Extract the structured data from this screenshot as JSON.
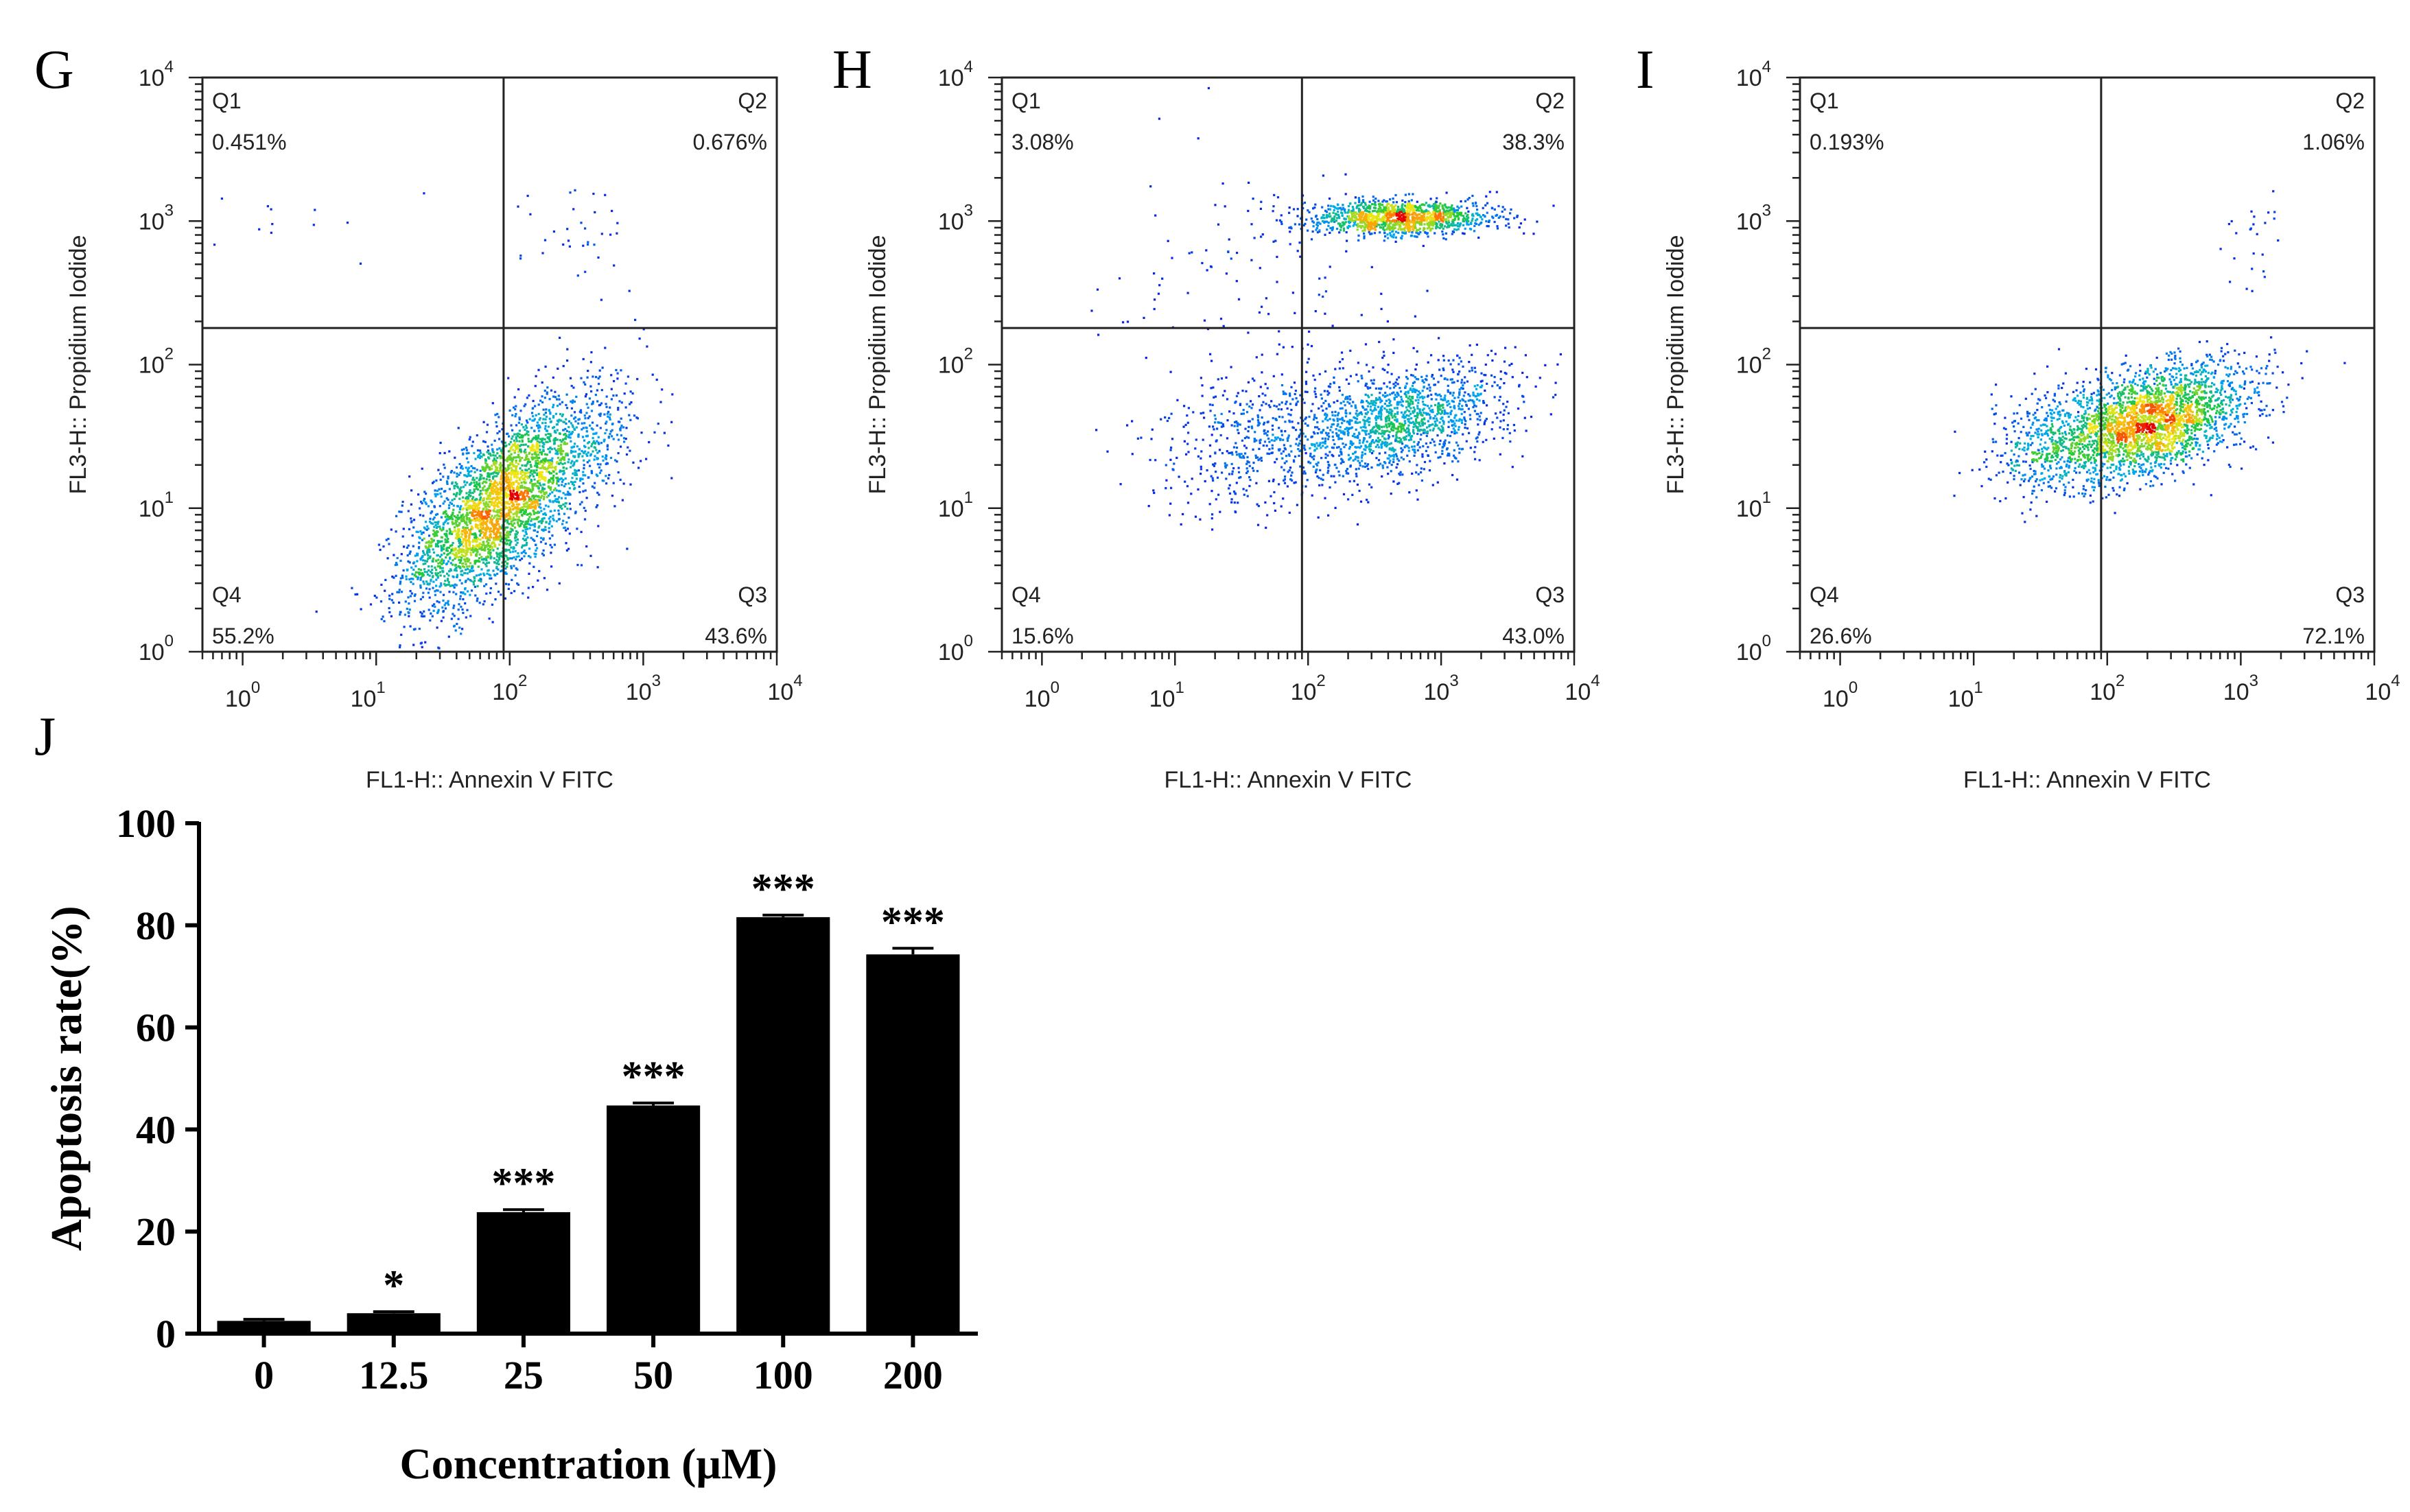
{
  "chart_data": [
    {
      "panel": "G",
      "type": "scatter",
      "xlabel": "FL1-H:: Annexin V FITC",
      "ylabel": "FL3-H:: Propidium Iodide",
      "x_scale": "log",
      "y_scale": "log",
      "xlim": [
        0.5,
        10000
      ],
      "ylim": [
        1,
        10000
      ],
      "x_ticks": [
        "10",
        "10",
        "10",
        "10",
        "10"
      ],
      "x_tick_exponents": [
        "0",
        "1",
        "2",
        "3",
        "4"
      ],
      "y_ticks": [
        "10",
        "10",
        "10",
        "10",
        "10"
      ],
      "y_tick_exponents": [
        "0",
        "1",
        "2",
        "3",
        "4"
      ],
      "gate": {
        "x": 90,
        "y": 180
      },
      "quadrants": [
        {
          "name": "Q1",
          "value": "0.451%"
        },
        {
          "name": "Q2",
          "value": "0.676%"
        },
        {
          "name": "Q3",
          "value": "43.6%"
        },
        {
          "name": "Q4",
          "value": "55.2%"
        }
      ],
      "populations": [
        {
          "cx": 70,
          "cy": 9,
          "sx": 0.32,
          "sy": 0.33,
          "rho": 0.6,
          "n": 2600
        },
        {
          "cx": 200,
          "cy": 20,
          "sx": 0.35,
          "sy": 0.3,
          "rho": 0.55,
          "n": 900
        },
        {
          "cx": 400,
          "cy": 800,
          "sx": 0.25,
          "sy": 0.2,
          "rho": 0.0,
          "n": 35
        },
        {
          "cx": 2,
          "cy": 900,
          "sx": 0.5,
          "sy": 0.15,
          "rho": 0.0,
          "n": 15
        }
      ]
    },
    {
      "panel": "H",
      "type": "scatter",
      "xlabel": "FL1-H:: Annexin V FITC",
      "ylabel": "FL3-H:: Propidium Iodide",
      "x_scale": "log",
      "y_scale": "log",
      "xlim": [
        0.5,
        10000
      ],
      "ylim": [
        1,
        10000
      ],
      "x_ticks": [
        "10",
        "10",
        "10",
        "10",
        "10"
      ],
      "x_tick_exponents": [
        "0",
        "1",
        "2",
        "3",
        "4"
      ],
      "y_ticks": [
        "10",
        "10",
        "10",
        "10",
        "10"
      ],
      "y_tick_exponents": [
        "0",
        "1",
        "2",
        "3",
        "4"
      ],
      "gate": {
        "x": 90,
        "y": 180
      },
      "quadrants": [
        {
          "name": "Q1",
          "value": "3.08%"
        },
        {
          "name": "Q2",
          "value": "38.3%"
        },
        {
          "name": "Q3",
          "value": "43.0%"
        },
        {
          "name": "Q4",
          "value": "15.6%"
        }
      ],
      "populations": [
        {
          "cx": 500,
          "cy": 1050,
          "sx": 0.35,
          "sy": 0.06,
          "rho": 0.0,
          "n": 1300
        },
        {
          "cx": 500,
          "cy": 40,
          "sx": 0.4,
          "sy": 0.2,
          "rho": 0.4,
          "n": 1400
        },
        {
          "cx": 40,
          "cy": 30,
          "sx": 0.4,
          "sy": 0.25,
          "rho": 0.3,
          "n": 500
        },
        {
          "cx": 40,
          "cy": 400,
          "sx": 0.6,
          "sy": 0.4,
          "rho": 0.0,
          "n": 120
        }
      ]
    },
    {
      "panel": "I",
      "type": "scatter",
      "xlabel": "FL1-H:: Annexin V FITC",
      "ylabel": "FL3-H:: Propidium Iodide",
      "x_scale": "log",
      "y_scale": "log",
      "xlim": [
        0.5,
        10000
      ],
      "ylim": [
        1,
        10000
      ],
      "x_ticks": [
        "10",
        "10",
        "10",
        "10",
        "10"
      ],
      "x_tick_exponents": [
        "0",
        "1",
        "2",
        "3",
        "4"
      ],
      "y_ticks": [
        "10",
        "10",
        "10",
        "10",
        "10"
      ],
      "y_tick_exponents": [
        "0",
        "1",
        "2",
        "3",
        "4"
      ],
      "gate": {
        "x": 90,
        "y": 180
      },
      "quadrants": [
        {
          "name": "Q1",
          "value": "0.193%"
        },
        {
          "name": "Q2",
          "value": "1.06%"
        },
        {
          "name": "Q3",
          "value": "72.1%"
        },
        {
          "name": "Q4",
          "value": "26.6%"
        }
      ],
      "populations": [
        {
          "cx": 220,
          "cy": 40,
          "sx": 0.35,
          "sy": 0.2,
          "rho": 0.45,
          "n": 2500
        },
        {
          "cx": 40,
          "cy": 30,
          "sx": 0.25,
          "sy": 0.2,
          "rho": 0.3,
          "n": 500
        },
        {
          "cx": 1200,
          "cy": 700,
          "sx": 0.12,
          "sy": 0.2,
          "rho": 0.0,
          "n": 25
        }
      ]
    },
    {
      "panel": "J",
      "type": "bar",
      "xlabel": "Concentration (μM)",
      "ylabel": "Apoptosis rate(%)",
      "categories": [
        "0",
        "12.5",
        "25",
        "50",
        "100",
        "200"
      ],
      "values": [
        2.5,
        4.0,
        23.8,
        44.7,
        81.6,
        74.3
      ],
      "errors": [
        0.3,
        0.3,
        0.5,
        0.5,
        0.4,
        1.2
      ],
      "significance": [
        "",
        "*",
        "***",
        "***",
        "***",
        "***"
      ],
      "ylim": [
        0,
        100
      ],
      "y_ticks": [
        "0",
        "20",
        "40",
        "60",
        "80",
        "100"
      ],
      "bar_color": "#000000"
    }
  ]
}
